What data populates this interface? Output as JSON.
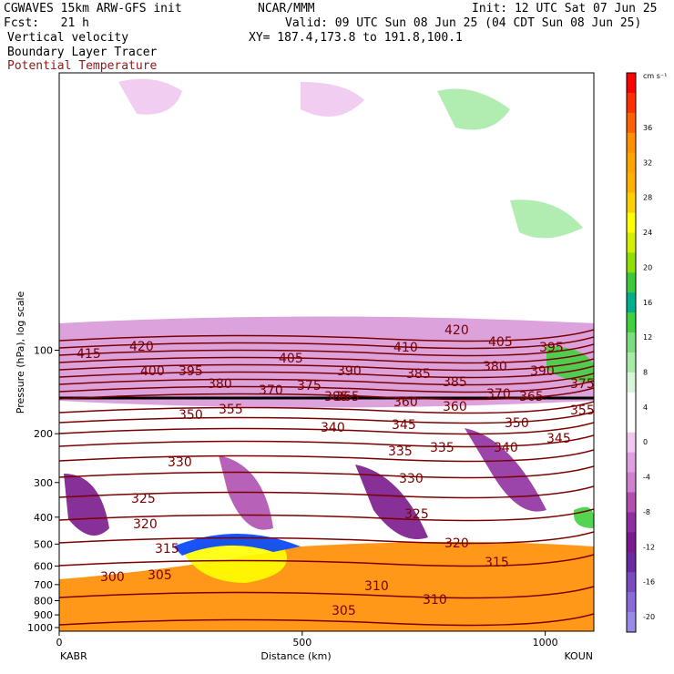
{
  "header": {
    "model": "CGWAVES 15km ARW-GFS init",
    "org": "NCAR/MMM",
    "init": "Init: 12 UTC Sat 07 Jun 25",
    "fcst": "Fcst:   21 h",
    "valid": "Valid: 09 UTC Sun 08 Jun 25 (04 CDT Sun 08 Jun 25)",
    "field1": "Vertical velocity",
    "xy": "XY= 187.4,173.8 to 191.8,100.1",
    "field2": "Boundary Layer Tracer",
    "field3": "Potential Temperature"
  },
  "chart_data": {
    "type": "heatmap",
    "subtype": "vertical cross-section",
    "xlabel": "Distance (km)",
    "ylabel": "Pressure (hPa), log scale",
    "x_ticks": [
      0,
      500,
      1000
    ],
    "xlim": [
      0,
      1100
    ],
    "y_ticks": [
      100,
      200,
      300,
      400,
      500,
      600,
      700,
      800,
      900,
      1000
    ],
    "ylim": [
      1000,
      10
    ],
    "endpoints": {
      "left": "KABR",
      "right": "KOUN"
    },
    "colorbar": {
      "units": "cm s⁻¹",
      "labels": [
        36,
        32,
        28,
        24,
        20,
        16,
        12,
        8,
        4,
        0,
        -4,
        -8,
        -12,
        -16,
        -20
      ],
      "colors": [
        "#ff0000",
        "#ff3000",
        "#ff6000",
        "#ff9000",
        "#ffa500",
        "#ffb000",
        "#ffd000",
        "#ffff00",
        "#d4f000",
        "#90e000",
        "#3ec83e",
        "#00b08c",
        "#40d040",
        "#7ddc7d",
        "#a8eaa8",
        "#d8f6d8",
        "#ffffff",
        "#ffffff",
        "#f0c8f0",
        "#e0a0e0",
        "#d080d0",
        "#b050b0",
        "#9030a0",
        "#7a1a8c",
        "#6a2aa0",
        "#7a4ac0",
        "#8a6ad8",
        "#9a8ae8"
      ]
    },
    "theta_contour_labels": [
      415,
      420,
      400,
      395,
      405,
      410,
      420,
      405,
      395,
      385,
      380,
      370,
      375,
      390,
      385,
      380,
      390,
      385,
      375,
      365,
      360,
      360,
      370,
      365,
      350,
      355,
      340,
      345,
      350,
      345,
      355,
      335,
      335,
      340,
      330,
      330,
      325,
      325,
      320,
      315,
      320,
      315,
      310,
      310,
      305,
      300,
      305
    ],
    "theta_contour_interval": 5
  }
}
